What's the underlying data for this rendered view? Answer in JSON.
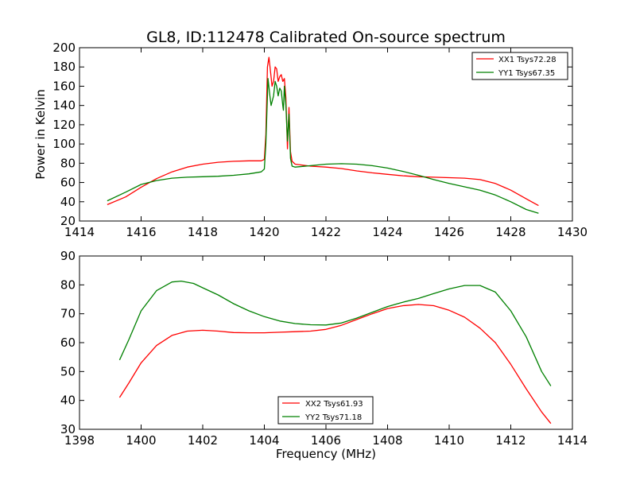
{
  "chart_data": [
    {
      "type": "line",
      "title": "GL8, ID:112478 Calibrated On-source spectrum",
      "xlabel": "",
      "ylabel": "Power in Kelvin",
      "xlim": [
        1414,
        1430
      ],
      "ylim": [
        20,
        200
      ],
      "xticks": [
        1414,
        1416,
        1418,
        1420,
        1422,
        1424,
        1426,
        1428,
        1430
      ],
      "yticks": [
        20,
        40,
        60,
        80,
        100,
        120,
        140,
        160,
        180,
        200
      ],
      "grid": false,
      "legend_position": "top-right",
      "series": [
        {
          "name": "XX1 Tsys72.28",
          "color": "#ff0000",
          "points": [
            [
              1414.9,
              37
            ],
            [
              1415.5,
              45
            ],
            [
              1416.0,
              55
            ],
            [
              1416.5,
              64
            ],
            [
              1417.0,
              71
            ],
            [
              1417.5,
              76
            ],
            [
              1418.0,
              79
            ],
            [
              1418.5,
              81
            ],
            [
              1419.0,
              82
            ],
            [
              1419.5,
              82.5
            ],
            [
              1419.9,
              82.5
            ],
            [
              1420.0,
              84
            ],
            [
              1420.05,
              110
            ],
            [
              1420.1,
              180
            ],
            [
              1420.15,
              190
            ],
            [
              1420.2,
              175
            ],
            [
              1420.25,
              160
            ],
            [
              1420.3,
              165
            ],
            [
              1420.35,
              180
            ],
            [
              1420.4,
              178
            ],
            [
              1420.45,
              165
            ],
            [
              1420.5,
              170
            ],
            [
              1420.55,
              172
            ],
            [
              1420.6,
              165
            ],
            [
              1420.65,
              168
            ],
            [
              1420.7,
              148
            ],
            [
              1420.75,
              95
            ],
            [
              1420.8,
              138
            ],
            [
              1420.85,
              92
            ],
            [
              1420.9,
              82
            ],
            [
              1421.0,
              79
            ],
            [
              1421.5,
              77
            ],
            [
              1422.0,
              76
            ],
            [
              1422.5,
              74.5
            ],
            [
              1423.0,
              72
            ],
            [
              1423.5,
              70
            ],
            [
              1424.0,
              68.5
            ],
            [
              1424.5,
              67
            ],
            [
              1425.0,
              66
            ],
            [
              1425.5,
              65.5
            ],
            [
              1426.0,
              65
            ],
            [
              1426.5,
              64.5
            ],
            [
              1427.0,
              63
            ],
            [
              1427.5,
              59
            ],
            [
              1428.0,
              52
            ],
            [
              1428.5,
              43
            ],
            [
              1428.9,
              36
            ]
          ]
        },
        {
          "name": "YY1 Tsys67.35",
          "color": "#008000",
          "points": [
            [
              1414.9,
              41
            ],
            [
              1415.5,
              50
            ],
            [
              1416.0,
              58
            ],
            [
              1416.5,
              62
            ],
            [
              1417.0,
              64.5
            ],
            [
              1417.5,
              65.5
            ],
            [
              1418.0,
              66
            ],
            [
              1418.5,
              66.5
            ],
            [
              1419.0,
              67.5
            ],
            [
              1419.5,
              69
            ],
            [
              1419.9,
              71
            ],
            [
              1420.0,
              74
            ],
            [
              1420.05,
              100
            ],
            [
              1420.1,
              150
            ],
            [
              1420.12,
              168
            ],
            [
              1420.18,
              150
            ],
            [
              1420.22,
              140
            ],
            [
              1420.3,
              150
            ],
            [
              1420.35,
              165
            ],
            [
              1420.4,
              160
            ],
            [
              1420.45,
              150
            ],
            [
              1420.5,
              158
            ],
            [
              1420.55,
              155
            ],
            [
              1420.6,
              140
            ],
            [
              1420.62,
              135
            ],
            [
              1420.65,
              160
            ],
            [
              1420.7,
              140
            ],
            [
              1420.75,
              103
            ],
            [
              1420.8,
              131
            ],
            [
              1420.85,
              85
            ],
            [
              1420.9,
              77
            ],
            [
              1421.0,
              76
            ],
            [
              1421.5,
              77.5
            ],
            [
              1422.0,
              79
            ],
            [
              1422.5,
              79.5
            ],
            [
              1423.0,
              79
            ],
            [
              1423.5,
              77.5
            ],
            [
              1424.0,
              75
            ],
            [
              1424.5,
              71.5
            ],
            [
              1425.0,
              67.5
            ],
            [
              1425.5,
              63
            ],
            [
              1426.0,
              59
            ],
            [
              1426.5,
              55.5
            ],
            [
              1427.0,
              52
            ],
            [
              1427.5,
              47
            ],
            [
              1428.0,
              40
            ],
            [
              1428.5,
              32
            ],
            [
              1428.9,
              28
            ]
          ]
        }
      ]
    },
    {
      "type": "line",
      "title": "",
      "xlabel": "Frequency (MHz)",
      "ylabel": "",
      "xlim": [
        1398,
        1414
      ],
      "ylim": [
        30,
        90
      ],
      "xticks": [
        1398,
        1400,
        1402,
        1404,
        1406,
        1408,
        1410,
        1412,
        1414
      ],
      "yticks": [
        30,
        40,
        50,
        60,
        70,
        80,
        90
      ],
      "grid": false,
      "legend_position": "bottom-center",
      "series": [
        {
          "name": "XX2 Tsys61.93",
          "color": "#ff0000",
          "points": [
            [
              1399.3,
              41
            ],
            [
              1399.6,
              46
            ],
            [
              1400.0,
              53
            ],
            [
              1400.5,
              59
            ],
            [
              1401.0,
              62.5
            ],
            [
              1401.5,
              64
            ],
            [
              1402.0,
              64.3
            ],
            [
              1402.5,
              64
            ],
            [
              1403.0,
              63.5
            ],
            [
              1403.5,
              63.4
            ],
            [
              1404.0,
              63.4
            ],
            [
              1404.5,
              63.6
            ],
            [
              1405.0,
              63.8
            ],
            [
              1405.5,
              64
            ],
            [
              1406.0,
              64.6
            ],
            [
              1406.5,
              66
            ],
            [
              1407.0,
              68
            ],
            [
              1407.5,
              70
            ],
            [
              1408.0,
              71.8
            ],
            [
              1408.5,
              72.8
            ],
            [
              1409.0,
              73.2
            ],
            [
              1409.5,
              72.8
            ],
            [
              1410.0,
              71.2
            ],
            [
              1410.5,
              68.8
            ],
            [
              1411.0,
              65
            ],
            [
              1411.5,
              60
            ],
            [
              1412.0,
              52.5
            ],
            [
              1412.5,
              44
            ],
            [
              1413.0,
              36
            ],
            [
              1413.3,
              32
            ]
          ]
        },
        {
          "name": "YY2 Tsys71.18",
          "color": "#008000",
          "points": [
            [
              1399.3,
              54
            ],
            [
              1399.6,
              61
            ],
            [
              1400.0,
              71
            ],
            [
              1400.5,
              78
            ],
            [
              1401.0,
              81
            ],
            [
              1401.3,
              81.3
            ],
            [
              1401.7,
              80.5
            ],
            [
              1402.0,
              79
            ],
            [
              1402.5,
              76.5
            ],
            [
              1403.0,
              73.5
            ],
            [
              1403.5,
              71
            ],
            [
              1404.0,
              69
            ],
            [
              1404.5,
              67.5
            ],
            [
              1405.0,
              66.6
            ],
            [
              1405.5,
              66.2
            ],
            [
              1406.0,
              66.1
            ],
            [
              1406.5,
              66.8
            ],
            [
              1407.0,
              68.5
            ],
            [
              1407.5,
              70.5
            ],
            [
              1408.0,
              72.5
            ],
            [
              1408.5,
              74
            ],
            [
              1409.0,
              75.3
            ],
            [
              1409.5,
              77
            ],
            [
              1410.0,
              78.6
            ],
            [
              1410.5,
              79.8
            ],
            [
              1411.0,
              79.8
            ],
            [
              1411.5,
              77.5
            ],
            [
              1412.0,
              71
            ],
            [
              1412.5,
              62
            ],
            [
              1413.0,
              50
            ],
            [
              1413.3,
              45
            ]
          ]
        }
      ]
    }
  ]
}
